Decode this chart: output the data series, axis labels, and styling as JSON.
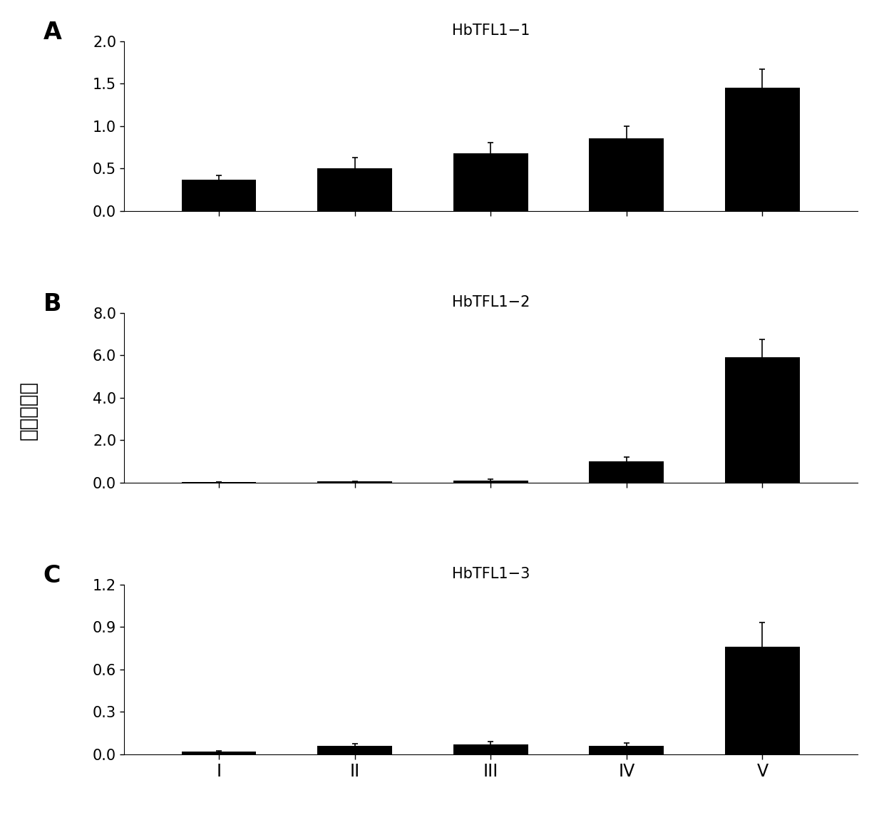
{
  "panels": [
    {
      "label": "A",
      "title": "HbTFL1−1",
      "categories": [
        "I",
        "II",
        "III",
        "IV",
        "V"
      ],
      "values": [
        0.37,
        0.5,
        0.68,
        0.85,
        1.45
      ],
      "errors": [
        0.05,
        0.13,
        0.12,
        0.15,
        0.22
      ],
      "ylim": [
        0,
        2.0
      ],
      "yticks": [
        0.0,
        0.5,
        1.0,
        1.5,
        2.0
      ],
      "yticklabels": [
        "0.0",
        "0.5",
        "1.0",
        "1.5",
        "2.0"
      ]
    },
    {
      "label": "B",
      "title": "HbTFL1−2",
      "categories": [
        "I",
        "II",
        "III",
        "IV",
        "V"
      ],
      "values": [
        0.02,
        0.06,
        0.1,
        1.0,
        5.9
      ],
      "errors": [
        0.005,
        0.015,
        0.07,
        0.2,
        0.85
      ],
      "ylim": [
        0,
        8.0
      ],
      "yticks": [
        0.0,
        2.0,
        4.0,
        6.0,
        8.0
      ],
      "yticklabels": [
        "0.0",
        "2.0",
        "4.0",
        "6.0",
        "8.0"
      ]
    },
    {
      "label": "C",
      "title": "HbTFL1−3",
      "categories": [
        "I",
        "II",
        "III",
        "IV",
        "V"
      ],
      "values": [
        0.02,
        0.06,
        0.07,
        0.06,
        0.76
      ],
      "errors": [
        0.005,
        0.018,
        0.02,
        0.02,
        0.17
      ],
      "ylim": [
        0,
        1.2
      ],
      "yticks": [
        0.0,
        0.3,
        0.6,
        0.9,
        1.2
      ],
      "yticklabels": [
        "0.0",
        "0.3",
        "0.6",
        "0.9",
        "1.2"
      ]
    }
  ],
  "ylabel": "相对表达量",
  "xlabel_categories": [
    "I",
    "II",
    "III",
    "IV",
    "V"
  ],
  "bar_color": "#000000",
  "bar_width": 0.55,
  "background_color": "#ffffff",
  "title_fontsize": 15,
  "tick_fontsize": 15,
  "ylabel_fontsize": 20,
  "xlabel_fontsize": 17,
  "panel_label_fontsize": 24
}
